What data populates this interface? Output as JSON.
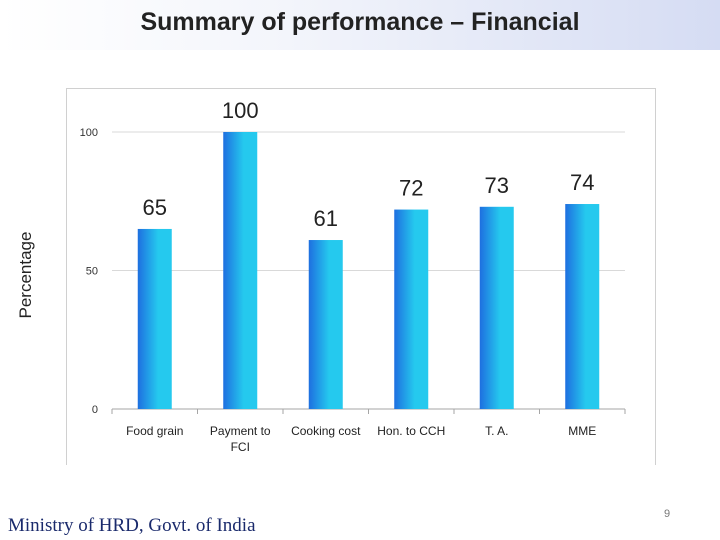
{
  "slide": {
    "title": "Summary of performance – Financial",
    "footer": "Ministry of HRD, Govt. of India",
    "page_number": "9"
  },
  "chart_data": {
    "type": "bar",
    "title": "",
    "ylabel": "Percentage",
    "xlabel": "",
    "categories": [
      "Food grain",
      "Payment to FCI",
      "Cooking cost",
      "Hon. to CCH",
      "T. A.",
      "MME"
    ],
    "category_lines": [
      [
        "Food grain"
      ],
      [
        "Payment to",
        "FCI"
      ],
      [
        "Cooking cost"
      ],
      [
        "Hon. to CCH"
      ],
      [
        "T. A."
      ],
      [
        "MME"
      ]
    ],
    "values": [
      65,
      100,
      61,
      72,
      73,
      74
    ],
    "data_labels": [
      "65",
      "100",
      "61",
      "72",
      "73",
      "74"
    ],
    "yticks": [
      "0",
      "50",
      "100"
    ],
    "ytick_values": [
      0,
      50,
      100
    ],
    "ylim": [
      0,
      100
    ],
    "grid": true,
    "legend": "none",
    "colors": {
      "bar_edge": "#1e6fe0",
      "bar_center": "#25c9ee",
      "gridline": "#d9d9d9",
      "axis": "#a6a6a6"
    }
  }
}
